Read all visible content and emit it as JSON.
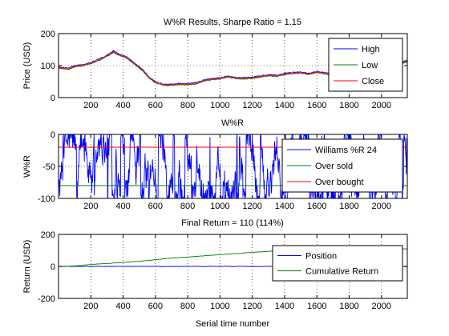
{
  "chart_data": [
    {
      "type": "line",
      "title": "W%R Results, Sharpe Ratio = 1.15",
      "xlabel": "",
      "ylabel": "Price (USD)",
      "xlim": [
        0,
        2160
      ],
      "ylim": [
        0,
        200
      ],
      "xticks": [
        200,
        400,
        600,
        800,
        1000,
        1200,
        1400,
        1600,
        1800,
        2000
      ],
      "yticks": [
        0,
        100,
        200
      ],
      "grid": true,
      "legend_position": "top-right",
      "series": [
        {
          "name": "High",
          "color": "#0000ff",
          "x": [
            0,
            60,
            100,
            150,
            200,
            250,
            300,
            340,
            380,
            420,
            470,
            520,
            560,
            600,
            650,
            700,
            750,
            800,
            850,
            900,
            950,
            1000,
            1050,
            1100,
            1150,
            1200,
            1250,
            1300,
            1350,
            1400,
            1450,
            1500,
            1550,
            1600,
            1650,
            1700,
            1750,
            1800,
            1850,
            1900,
            1950,
            2000,
            2050,
            2100,
            2160
          ],
          "y": [
            96,
            92,
            100,
            103,
            110,
            120,
            133,
            146,
            135,
            128,
            108,
            88,
            65,
            50,
            42,
            42,
            44,
            44,
            47,
            55,
            60,
            62,
            68,
            63,
            62,
            64,
            68,
            72,
            70,
            76,
            79,
            80,
            76,
            82,
            78,
            74,
            82,
            76,
            72,
            74,
            80,
            88,
            96,
            105,
            117
          ]
        },
        {
          "name": "Low",
          "color": "#008000",
          "x": [
            0,
            60,
            100,
            150,
            200,
            250,
            300,
            340,
            380,
            420,
            470,
            520,
            560,
            600,
            650,
            700,
            750,
            800,
            850,
            900,
            950,
            1000,
            1050,
            1100,
            1150,
            1200,
            1250,
            1300,
            1350,
            1400,
            1450,
            1500,
            1550,
            1600,
            1650,
            1700,
            1750,
            1800,
            1850,
            1900,
            1950,
            2000,
            2050,
            2100,
            2160
          ],
          "y": [
            92,
            88,
            96,
            99,
            106,
            116,
            129,
            140,
            131,
            124,
            104,
            84,
            61,
            46,
            38,
            38,
            40,
            40,
            43,
            51,
            56,
            58,
            64,
            59,
            58,
            60,
            64,
            68,
            66,
            72,
            75,
            76,
            72,
            78,
            74,
            70,
            78,
            72,
            68,
            70,
            76,
            84,
            92,
            101,
            112
          ]
        },
        {
          "name": "Close",
          "color": "#ff0000",
          "x": [
            0,
            60,
            100,
            150,
            200,
            250,
            300,
            340,
            380,
            420,
            470,
            520,
            560,
            600,
            650,
            700,
            750,
            800,
            850,
            900,
            950,
            1000,
            1050,
            1100,
            1150,
            1200,
            1250,
            1300,
            1350,
            1400,
            1450,
            1500,
            1550,
            1600,
            1650,
            1700,
            1750,
            1800,
            1850,
            1900,
            1950,
            2000,
            2050,
            2100,
            2160
          ],
          "y": [
            94,
            90,
            98,
            101,
            108,
            118,
            131,
            143,
            133,
            126,
            106,
            86,
            63,
            48,
            40,
            40,
            42,
            42,
            45,
            53,
            58,
            60,
            66,
            61,
            60,
            62,
            66,
            70,
            68,
            74,
            77,
            78,
            74,
            80,
            76,
            72,
            80,
            74,
            70,
            72,
            78,
            86,
            94,
            103,
            114
          ]
        }
      ]
    },
    {
      "type": "line",
      "title": "W%R",
      "xlabel": "",
      "ylabel": "W%R",
      "xlim": [
        0,
        2160
      ],
      "ylim": [
        -100,
        0
      ],
      "xticks": [
        200,
        400,
        600,
        800,
        1000,
        1200,
        1400,
        1600,
        1800,
        2000
      ],
      "yticks": [
        -100,
        -50,
        0
      ],
      "grid": true,
      "legend_position": "top-right",
      "series": [
        {
          "name": "Williams %R 24",
          "color": "#0000ff",
          "oscillating": true,
          "range": [
            -100,
            0
          ]
        },
        {
          "name": "Over sold",
          "color": "#008000",
          "x": [
            0,
            2160
          ],
          "y": [
            -80,
            -80
          ]
        },
        {
          "name": "Over bought",
          "color": "#ff0000",
          "x": [
            0,
            2160
          ],
          "y": [
            -20,
            -20
          ]
        }
      ]
    },
    {
      "type": "line",
      "title": "Final Return = 110 (114%)",
      "xlabel": "Serial time number",
      "ylabel": "Return (USD)",
      "xlim": [
        0,
        2160
      ],
      "ylim": [
        -200,
        200
      ],
      "xticks": [
        200,
        400,
        600,
        800,
        1000,
        1200,
        1400,
        1600,
        1800,
        2000
      ],
      "yticks": [
        -200,
        0,
        200
      ],
      "grid": true,
      "legend_position": "top-right",
      "series": [
        {
          "name": "Position",
          "color": "#0000ff",
          "x": [
            0,
            2160
          ],
          "y": [
            0,
            0
          ]
        },
        {
          "name": "Cumulative Return",
          "color": "#008000",
          "x": [
            0,
            100,
            200,
            300,
            400,
            500,
            600,
            700,
            800,
            900,
            1000,
            1100,
            1200,
            1300,
            1400,
            1500,
            1600,
            1700,
            1800,
            1900,
            2000,
            2100,
            2160
          ],
          "y": [
            0,
            2,
            12,
            18,
            25,
            32,
            42,
            52,
            58,
            66,
            74,
            80,
            88,
            94,
            98,
            100,
            103,
            104,
            104,
            106,
            108,
            109,
            110
          ]
        }
      ]
    }
  ]
}
